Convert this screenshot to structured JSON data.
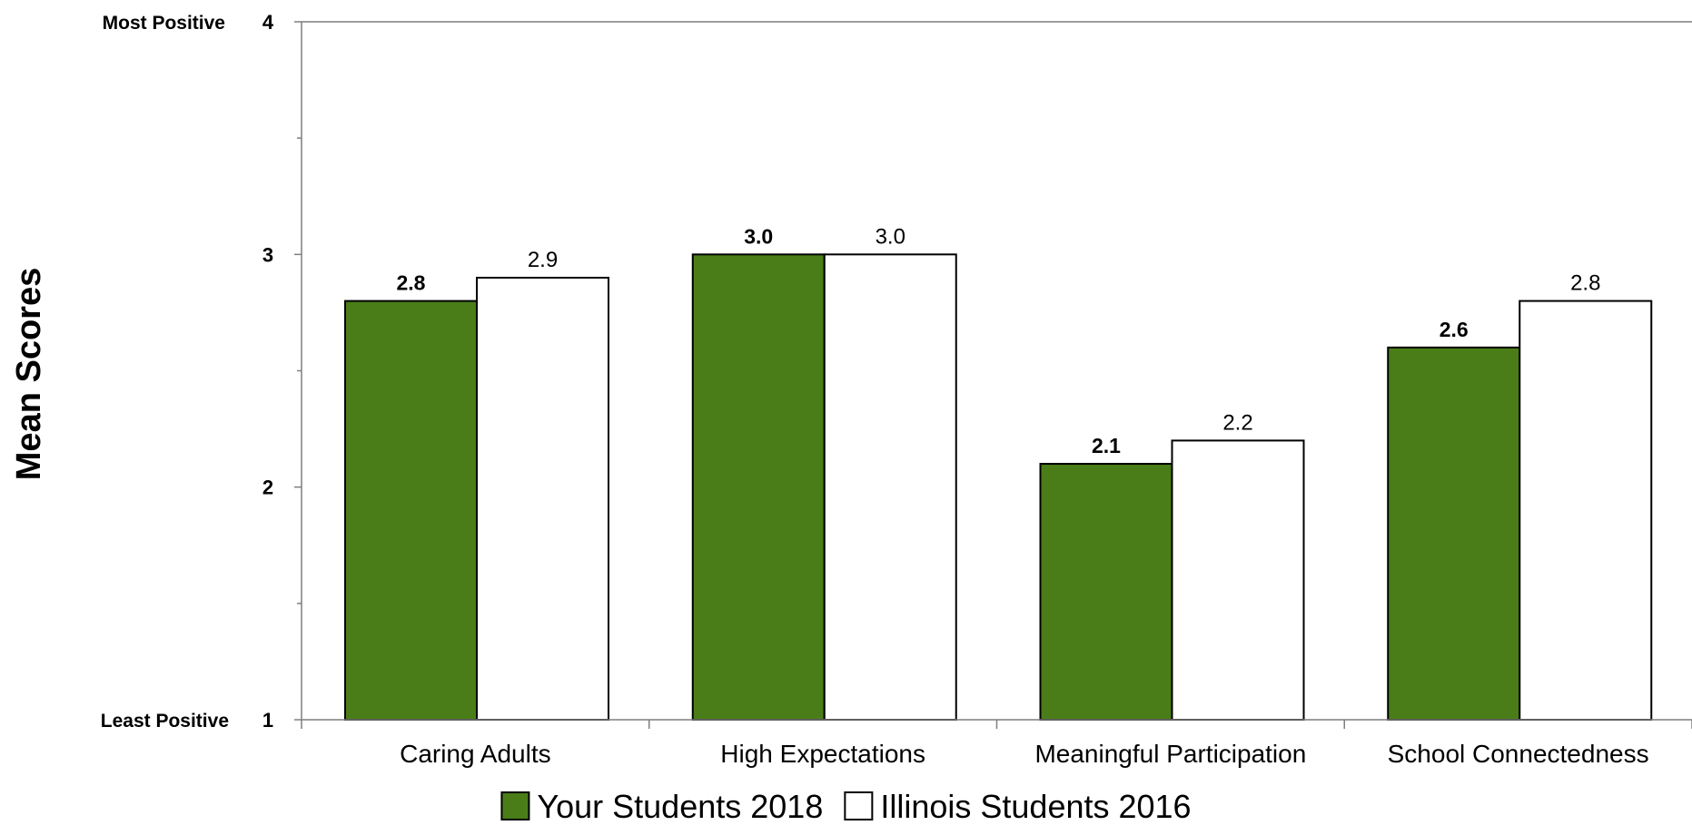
{
  "chart_data": {
    "type": "bar",
    "categories": [
      "Caring Adults",
      "High Expectations",
      "Meaningful Participation",
      "School Connectedness"
    ],
    "series": [
      {
        "name": "Your Students 2018",
        "values": [
          2.8,
          3.0,
          2.1,
          2.6
        ],
        "labels": [
          "2.8",
          "3.0",
          "2.1",
          "2.6"
        ],
        "color": "#4a7d18"
      },
      {
        "name": "Illinois Students 2016",
        "values": [
          2.9,
          3.0,
          2.2,
          2.8
        ],
        "labels": [
          "2.9",
          "3.0",
          "2.2",
          "2.8"
        ],
        "color": "#ffffff"
      }
    ],
    "ylabel": "Mean Scores",
    "xlabel": "",
    "ylim": [
      1,
      4
    ],
    "yticks": [
      1,
      2,
      3,
      4
    ],
    "ytick_labels": [
      "1",
      "2",
      "3",
      "4"
    ],
    "y_anchor_labels": {
      "top": "Most Positive",
      "bottom": "Least Positive"
    },
    "grid": false,
    "legend_position": "bottom-center"
  }
}
